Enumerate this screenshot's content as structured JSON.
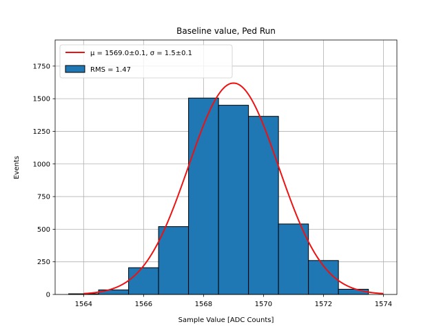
{
  "chart_data": {
    "type": "bar",
    "title": "Baseline value, Ped Run",
    "xlabel": "Sample Value [ADC Counts]",
    "ylabel": "Events",
    "xlim": [
      1563.05,
      1574.45
    ],
    "ylim": [
      0,
      1950
    ],
    "grid": true,
    "legend_position": "top-left",
    "xticks": [
      {
        "value": 1564,
        "label": "1564"
      },
      {
        "value": 1566,
        "label": "1566"
      },
      {
        "value": 1568,
        "label": "1568"
      },
      {
        "value": 1570,
        "label": "1570"
      },
      {
        "value": 1572,
        "label": "1572"
      },
      {
        "value": 1574,
        "label": "1574"
      }
    ],
    "yticks": [
      {
        "value": 0,
        "label": "0"
      },
      {
        "value": 250,
        "label": "250"
      },
      {
        "value": 500,
        "label": "500"
      },
      {
        "value": 750,
        "label": "750"
      },
      {
        "value": 1000,
        "label": "1000"
      },
      {
        "value": 1250,
        "label": "1250"
      },
      {
        "value": 1500,
        "label": "1500"
      },
      {
        "value": 1750,
        "label": "1750"
      }
    ],
    "histogram": {
      "name": "RMS = 1.47",
      "color": "#1f77b4",
      "edge_color": "#000000",
      "bin_edges": [
        1563.5,
        1564.5,
        1565.5,
        1566.5,
        1567.5,
        1568.5,
        1569.5,
        1570.5,
        1571.5,
        1572.5,
        1573.5
      ],
      "counts": [
        5,
        35,
        205,
        520,
        1505,
        1450,
        1365,
        540,
        260,
        40
      ]
    },
    "fit": {
      "name": "μ = 1569.0±0.1, σ = 1.5±0.1",
      "color": "#ee1111",
      "type": "gaussian",
      "mu": 1569.0,
      "sigma": 1.5,
      "amplitude": 1620,
      "x_range": [
        1564.0,
        1574.0
      ]
    }
  }
}
